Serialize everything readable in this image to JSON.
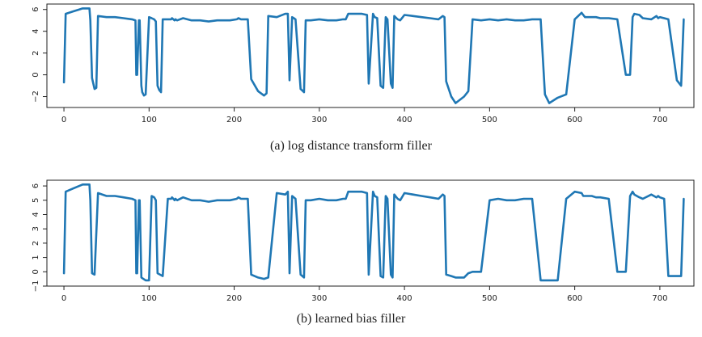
{
  "colors": {
    "series": "#1f77b4",
    "axis": "#222222"
  },
  "captions": [
    "(a) log distance transform filler",
    "(b) learned bias filler"
  ],
  "chart_data": [
    {
      "type": "line",
      "caption": "(a) log distance transform filler",
      "xlim": [
        -20,
        740
      ],
      "ylim": [
        -3,
        6.5
      ],
      "xticks": [
        0,
        100,
        200,
        300,
        400,
        500,
        600,
        700
      ],
      "yticks": [
        -2,
        0,
        2,
        4,
        6
      ],
      "xtick_labels": [
        "0",
        "100",
        "200",
        "300",
        "400",
        "500",
        "600",
        "700"
      ],
      "ytick_labels": [
        "−2",
        "0",
        "2",
        "4",
        "6"
      ],
      "x": [
        0,
        2,
        10,
        18,
        22,
        30,
        31,
        33,
        36,
        38,
        40,
        50,
        60,
        70,
        80,
        84,
        85,
        86,
        88,
        89,
        91,
        92,
        94,
        96,
        100,
        103,
        106,
        108,
        110,
        112,
        114,
        116,
        122,
        124,
        126,
        127,
        130,
        131,
        133,
        140,
        150,
        160,
        170,
        180,
        195,
        203,
        205,
        208,
        210,
        212,
        216,
        220,
        228,
        235,
        238,
        240,
        250,
        260,
        263,
        265,
        268,
        270,
        272,
        278,
        282,
        284,
        290,
        300,
        310,
        320,
        328,
        331,
        334,
        340,
        350,
        356,
        358,
        363,
        365,
        368,
        372,
        375,
        378,
        380,
        384,
        386,
        388,
        392,
        395,
        398,
        400,
        410,
        420,
        430,
        440,
        445,
        447,
        449,
        455,
        460,
        470,
        475,
        480,
        490,
        500,
        510,
        520,
        530,
        540,
        550,
        560,
        565,
        570,
        580,
        590,
        600,
        608,
        610,
        612,
        620,
        625,
        630,
        640,
        650,
        660,
        665,
        668,
        670,
        676,
        680,
        690,
        696,
        698,
        700,
        705,
        710,
        720,
        725,
        728
      ],
      "y": [
        -0.7,
        5.6,
        5.8,
        6.0,
        6.1,
        6.1,
        5.0,
        -0.3,
        -1.3,
        -1.2,
        5.4,
        5.3,
        5.3,
        5.2,
        5.1,
        5.0,
        0.0,
        0.0,
        5.0,
        5.0,
        -1.0,
        -1.6,
        -1.9,
        -1.8,
        5.3,
        5.2,
        5.1,
        4.9,
        -1.0,
        -1.4,
        -1.6,
        5.1,
        5.1,
        5.1,
        5.1,
        5.2,
        5.0,
        5.1,
        5.0,
        5.2,
        5.0,
        5.0,
        4.9,
        5.0,
        5.0,
        5.1,
        5.2,
        5.1,
        5.1,
        5.1,
        5.1,
        -0.4,
        -1.5,
        -1.9,
        -1.7,
        5.4,
        5.3,
        5.6,
        5.6,
        -0.5,
        5.3,
        5.2,
        5.1,
        -1.3,
        -1.6,
        5.0,
        5.0,
        5.1,
        5.0,
        5.0,
        5.1,
        5.1,
        5.6,
        5.6,
        5.6,
        5.5,
        -0.8,
        5.6,
        5.3,
        5.2,
        -1.0,
        -1.2,
        5.3,
        5.1,
        -0.8,
        -1.2,
        5.4,
        5.1,
        5.0,
        5.3,
        5.5,
        5.4,
        5.3,
        5.2,
        5.1,
        5.4,
        5.3,
        -0.6,
        -2.0,
        -2.6,
        -2.0,
        -1.5,
        5.1,
        5.0,
        5.1,
        5.0,
        5.1,
        5.0,
        5.0,
        5.1,
        5.1,
        -1.8,
        -2.6,
        -2.1,
        -1.8,
        5.1,
        5.7,
        5.5,
        5.3,
        5.3,
        5.3,
        5.2,
        5.2,
        5.1,
        0.0,
        0.0,
        5.3,
        5.6,
        5.5,
        5.2,
        5.1,
        5.4,
        5.2,
        5.3,
        5.2,
        5.1,
        -0.5,
        -1.0,
        5.1
      ]
    },
    {
      "type": "line",
      "caption": "(b) learned bias filler",
      "xlim": [
        -20,
        740
      ],
      "ylim": [
        -1,
        6.4
      ],
      "xticks": [
        0,
        100,
        200,
        300,
        400,
        500,
        600,
        700
      ],
      "yticks": [
        -1,
        0,
        1,
        2,
        3,
        4,
        5,
        6
      ],
      "xtick_labels": [
        "0",
        "100",
        "200",
        "300",
        "400",
        "500",
        "600",
        "700"
      ],
      "ytick_labels": [
        "−1",
        "0",
        "1",
        "2",
        "3",
        "4",
        "5",
        "6"
      ],
      "x": [
        0,
        2,
        10,
        18,
        22,
        30,
        31,
        33,
        36,
        40,
        50,
        60,
        70,
        80,
        84,
        85,
        86,
        88,
        89,
        91,
        96,
        100,
        103,
        106,
        108,
        110,
        116,
        122,
        126,
        127,
        130,
        131,
        133,
        140,
        150,
        160,
        170,
        180,
        195,
        203,
        205,
        208,
        212,
        216,
        220,
        228,
        235,
        240,
        250,
        260,
        263,
        265,
        268,
        270,
        272,
        278,
        282,
        284,
        290,
        300,
        310,
        320,
        328,
        331,
        334,
        340,
        350,
        356,
        358,
        363,
        365,
        368,
        372,
        375,
        378,
        380,
        384,
        386,
        388,
        392,
        395,
        398,
        400,
        410,
        420,
        430,
        440,
        445,
        447,
        449,
        455,
        460,
        470,
        475,
        480,
        490,
        500,
        510,
        520,
        530,
        540,
        550,
        560,
        565,
        570,
        580,
        590,
        600,
        608,
        610,
        612,
        620,
        625,
        630,
        640,
        650,
        660,
        665,
        668,
        670,
        676,
        680,
        690,
        696,
        698,
        700,
        705,
        710,
        720,
        725,
        728
      ],
      "y": [
        -0.1,
        5.6,
        5.8,
        6.0,
        6.1,
        6.1,
        5.0,
        -0.1,
        -0.2,
        5.5,
        5.3,
        5.3,
        5.2,
        5.1,
        5.0,
        -0.1,
        -0.1,
        5.0,
        5.0,
        -0.4,
        -0.6,
        -0.6,
        5.3,
        5.2,
        5.0,
        -0.1,
        -0.3,
        5.1,
        5.1,
        5.2,
        5.0,
        5.1,
        5.0,
        5.2,
        5.0,
        5.0,
        4.9,
        5.0,
        5.0,
        5.1,
        5.2,
        5.1,
        5.1,
        5.1,
        -0.2,
        -0.4,
        -0.5,
        -0.4,
        5.5,
        5.4,
        5.6,
        -0.1,
        5.3,
        5.2,
        5.1,
        -0.2,
        -0.4,
        5.0,
        5.0,
        5.1,
        5.0,
        5.0,
        5.1,
        5.1,
        5.6,
        5.6,
        5.6,
        5.5,
        -0.2,
        5.6,
        5.3,
        5.2,
        -0.3,
        -0.4,
        5.3,
        5.1,
        -0.2,
        -0.4,
        5.4,
        5.1,
        5.0,
        5.3,
        5.5,
        5.4,
        5.3,
        5.2,
        5.1,
        5.4,
        5.3,
        -0.2,
        -0.3,
        -0.4,
        -0.4,
        -0.1,
        0.0,
        0.0,
        5.0,
        5.1,
        5.0,
        5.0,
        5.1,
        5.1,
        -0.6,
        -0.6,
        -0.6,
        -0.6,
        5.1,
        5.6,
        5.5,
        5.3,
        5.3,
        5.3,
        5.2,
        5.2,
        5.1,
        0.0,
        0.0,
        5.3,
        5.6,
        5.4,
        5.2,
        5.1,
        5.4,
        5.2,
        5.3,
        5.2,
        5.1,
        -0.3,
        -0.3,
        -0.3,
        5.1
      ]
    }
  ]
}
